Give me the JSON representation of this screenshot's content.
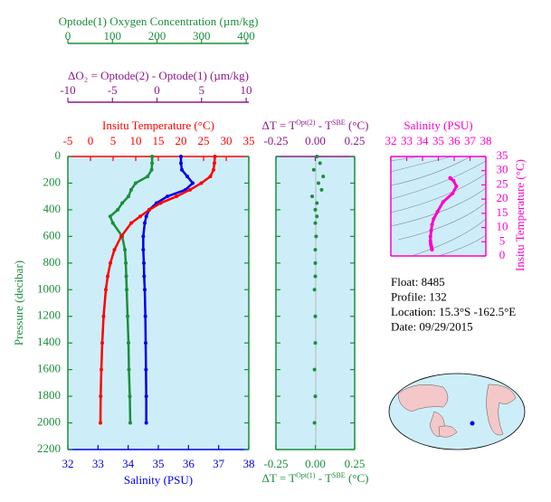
{
  "chart_data": [
    {
      "type": "profile",
      "y_label": "Pressure (decibar)",
      "pressure": [
        0,
        50,
        100,
        150,
        200,
        250,
        300,
        350,
        400,
        450,
        500,
        600,
        700,
        800,
        900,
        1000,
        1200,
        1400,
        1600,
        1800,
        2000
      ],
      "ylim": [
        0,
        2200
      ],
      "yticks": [
        0,
        200,
        400,
        600,
        800,
        1000,
        1200,
        1400,
        1600,
        1800,
        2000,
        2200
      ],
      "oxygen_axis": {
        "title": "Optode(1) Oxygen Concentration (µm/kg)",
        "color": "#1a8f3a",
        "xlim": [
          0,
          406
        ],
        "xticks": [
          0,
          100,
          200,
          300,
          400
        ]
      },
      "delta_o2_axis": {
        "title": "ΔO₂ = Optode(2) - Optode(1)   (µm/kg)",
        "color": "#8b1a8b",
        "xlim": [
          -10,
          10.3
        ],
        "xticks": [
          -10,
          -5,
          0,
          5,
          10
        ]
      },
      "temperature_axis": {
        "title": "Insitu Temperature (°C)",
        "color": "#ff0000",
        "xlim": [
          -5,
          35
        ],
        "xticks": [
          -5,
          0,
          5,
          10,
          15,
          20,
          25,
          30,
          35
        ]
      },
      "salinity_axis": {
        "title": "Salinity (PSU)",
        "color": "#0000ee",
        "xlim": [
          32,
          38
        ],
        "xticks": [
          32,
          33,
          34,
          35,
          36,
          37,
          38
        ]
      },
      "series": [
        {
          "axis": "oxygen_axis",
          "color": "#1a8f3a",
          "values": [
            189,
            189,
            188,
            179,
            152,
            142,
            136,
            122,
            112,
            95,
            101,
            122,
            128,
            130,
            131,
            132,
            134,
            136,
            137,
            139,
            140
          ]
        },
        {
          "axis": "salinity_axis",
          "color": "#0000ee",
          "values": [
            35.75,
            35.75,
            35.78,
            35.96,
            36.14,
            35.9,
            35.3,
            34.94,
            34.7,
            34.6,
            34.55,
            34.5,
            34.5,
            34.52,
            34.53,
            34.55,
            34.57,
            34.58,
            34.59,
            34.6,
            34.6
          ]
        },
        {
          "axis": "temperature_axis",
          "color": "#ff0000",
          "values": [
            27.5,
            27.4,
            27.2,
            26.5,
            24.5,
            22,
            19,
            15.5,
            13,
            11,
            9,
            6.8,
            5.3,
            4.4,
            3.8,
            3.4,
            2.9,
            2.6,
            2.4,
            2.25,
            2.2
          ]
        }
      ]
    },
    {
      "type": "scatter",
      "top_title": [
        "ΔT = T",
        "Opt(2)",
        " - T",
        "SBE",
        " (°C)"
      ],
      "bottom_title": [
        "ΔT = T",
        "Opt(1)",
        " - T",
        "SBE",
        " (°C)"
      ],
      "color": "#1a8f3a",
      "xlim": [
        -0.25,
        0.25
      ],
      "xticks": [
        {
          "value": -0.25,
          "label": "-0.25"
        },
        {
          "value": 0,
          "label": "0.00"
        },
        {
          "value": 0.25,
          "label": "0.25"
        }
      ],
      "y": [
        0,
        50,
        100,
        150,
        200,
        250,
        300,
        350,
        400,
        450,
        500,
        600,
        700,
        800,
        900,
        1000,
        1200,
        1400,
        1600,
        1800,
        2000
      ],
      "values": [
        0.01,
        0.03,
        -0.01,
        0.05,
        0.02,
        0.04,
        -0.02,
        0.01,
        0.0,
        0.01,
        0.0,
        0.005,
        0,
        0,
        0,
        -0.005,
        0,
        0,
        -0.005,
        0,
        -0.005
      ],
      "ylim": [
        0,
        2200
      ],
      "yticks": [
        0,
        200,
        400,
        600,
        800,
        1000,
        1200,
        1400,
        1600,
        1800,
        2000,
        2200
      ]
    },
    {
      "type": "ts",
      "x_label": "Salinity (PSU)",
      "y_label": "Insitu Temperature (°C)",
      "color": "#ff00cc",
      "xlim": [
        32,
        38
      ],
      "xticks": [
        32,
        33,
        34,
        35,
        36,
        37,
        38
      ],
      "ylim": [
        0,
        35
      ],
      "yticks": [
        0,
        5,
        10,
        15,
        20,
        25,
        30,
        35
      ],
      "x": [
        35.75,
        35.75,
        35.78,
        35.96,
        36.14,
        35.9,
        35.3,
        34.94,
        34.7,
        34.6,
        34.55,
        34.5,
        34.5,
        34.52,
        34.53,
        34.55,
        34.57,
        34.58,
        34.59,
        34.6,
        34.6
      ],
      "y": [
        27.5,
        27.4,
        27.2,
        26.5,
        24.5,
        22,
        19,
        15.5,
        13,
        11,
        9,
        6.8,
        5.3,
        4.4,
        3.8,
        3.4,
        2.9,
        2.6,
        2.4,
        2.25,
        2.2
      ]
    }
  ],
  "info": [
    "Float:  8485",
    "Profile:  132",
    "Location:  15.3°S  -162.5°E",
    "Date:  09/29/2015"
  ]
}
